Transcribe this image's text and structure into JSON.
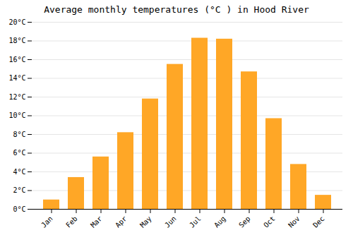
{
  "chart_data": {
    "type": "bar",
    "title": "Average monthly temperatures (°C ) in Hood River",
    "categories": [
      "Jan",
      "Feb",
      "Mar",
      "Apr",
      "May",
      "Jun",
      "Jul",
      "Aug",
      "Sep",
      "Oct",
      "Nov",
      "Dec"
    ],
    "values": [
      1.0,
      3.4,
      5.6,
      8.2,
      11.8,
      15.5,
      18.3,
      18.2,
      14.7,
      9.7,
      4.8,
      1.5
    ],
    "color": "#FFA726",
    "ylim": [
      0,
      20
    ],
    "yticks": [
      {
        "value": 0,
        "label": "0°C"
      },
      {
        "value": 2,
        "label": "2°C"
      },
      {
        "value": 4,
        "label": "4°C"
      },
      {
        "value": 6,
        "label": "6°C"
      },
      {
        "value": 8,
        "label": "8°C"
      },
      {
        "value": 10,
        "label": "10°C"
      },
      {
        "value": 12,
        "label": "12°C"
      },
      {
        "value": 14,
        "label": "14°C"
      },
      {
        "value": 16,
        "label": "16°C"
      },
      {
        "value": 18,
        "label": "18°C"
      },
      {
        "value": 20,
        "label": "20°C"
      }
    ],
    "grid": true
  }
}
